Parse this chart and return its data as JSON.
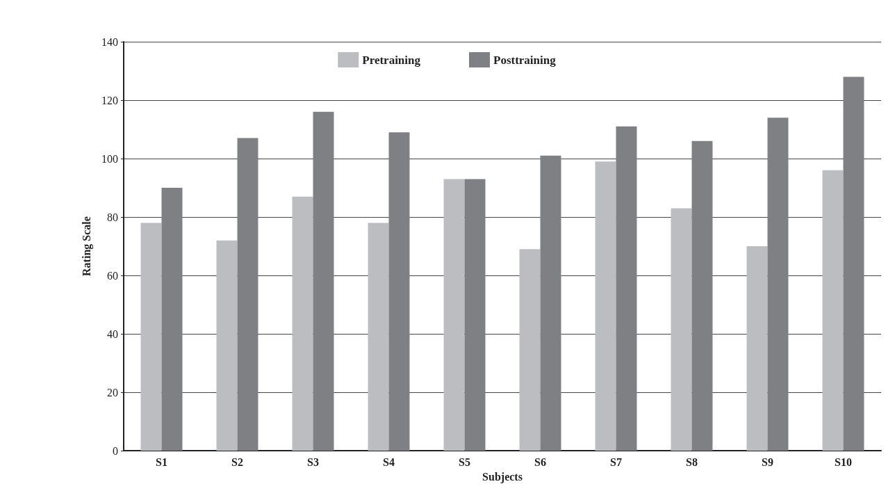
{
  "chart_data": {
    "type": "bar",
    "xlabel": "Subjects",
    "ylabel": "Rating Scale",
    "categories": [
      "S1",
      "S2",
      "S3",
      "S4",
      "S5",
      "S6",
      "S7",
      "S8",
      "S9",
      "S10"
    ],
    "series": [
      {
        "name": "Pretraining",
        "color": "#bcbdc0",
        "values": [
          78,
          72,
          87,
          78,
          93,
          69,
          99,
          83,
          70,
          96
        ]
      },
      {
        "name": "Posttraining",
        "color": "#7f8084",
        "values": [
          90,
          107,
          116,
          109,
          93,
          101,
          111,
          106,
          114,
          128
        ]
      }
    ],
    "ylim": [
      0,
      140
    ],
    "yticks": [
      0,
      20,
      40,
      60,
      80,
      100,
      120,
      140
    ],
    "grid": "y",
    "legend": "top"
  }
}
